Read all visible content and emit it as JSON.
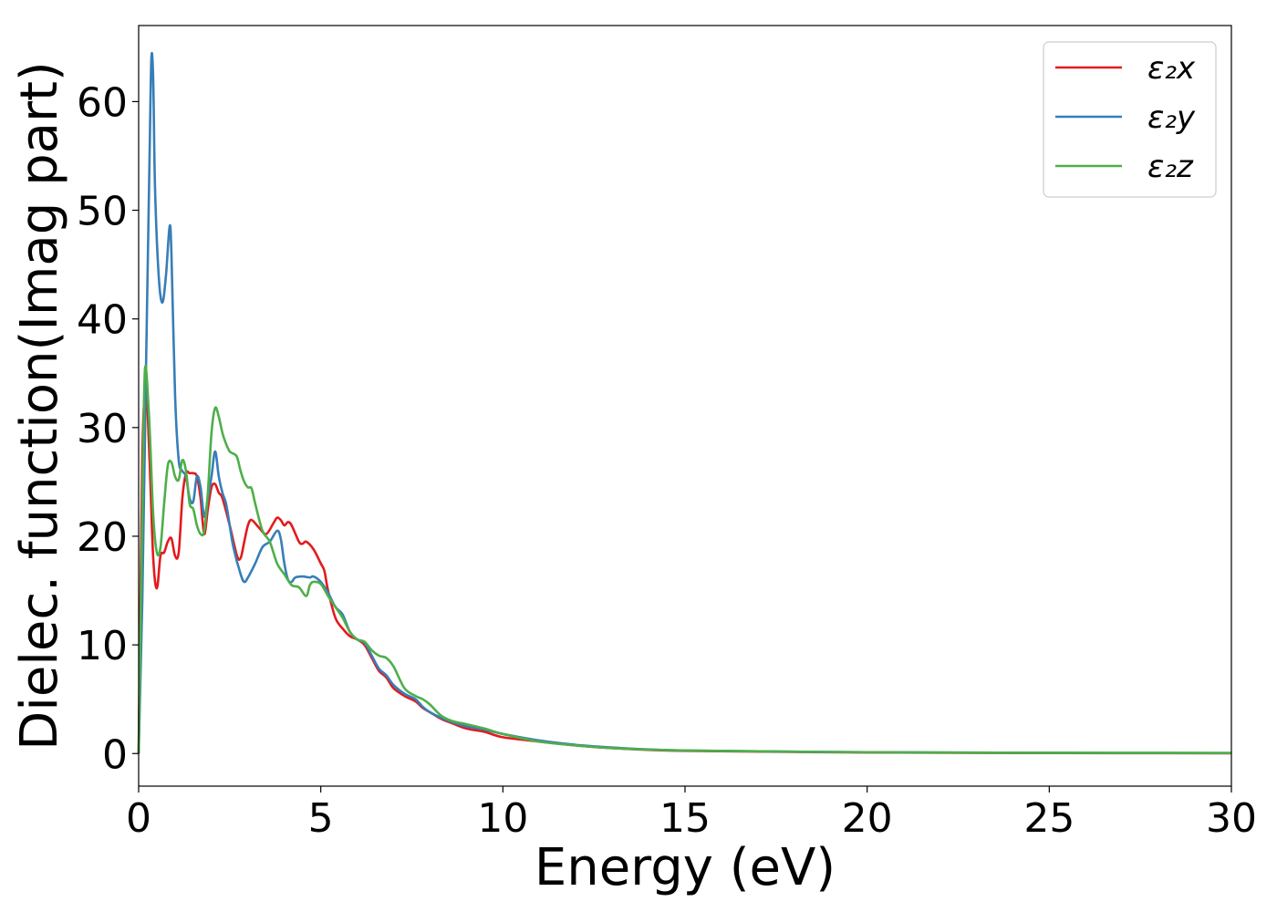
{
  "chart_data": {
    "type": "line",
    "title": "",
    "xlabel": "Energy (eV)",
    "ylabel": "Dielec. function(Imag part)",
    "xlim": [
      0,
      30
    ],
    "ylim": [
      -3,
      67
    ],
    "xticks": [
      0,
      5,
      10,
      15,
      20,
      25,
      30
    ],
    "yticks": [
      0,
      10,
      20,
      30,
      40,
      50,
      60
    ],
    "grid": false,
    "legend_position": "top-right",
    "series": [
      {
        "name": "ε₂x",
        "color": "#e41a1c",
        "points": [
          [
            0,
            0
          ],
          [
            0.1,
            27
          ],
          [
            0.2,
            33.5
          ],
          [
            0.3,
            27
          ],
          [
            0.4,
            18
          ],
          [
            0.5,
            15.2
          ],
          [
            0.6,
            18.2
          ],
          [
            0.7,
            18.5
          ],
          [
            0.8,
            19.5
          ],
          [
            0.9,
            19.8
          ],
          [
            1.0,
            18.2
          ],
          [
            1.1,
            18.5
          ],
          [
            1.2,
            23.5
          ],
          [
            1.3,
            25.8
          ],
          [
            1.4,
            25.8
          ],
          [
            1.5,
            25.8
          ],
          [
            1.6,
            25.5
          ],
          [
            1.7,
            23.5
          ],
          [
            1.8,
            20.2
          ],
          [
            1.9,
            22.5
          ],
          [
            2.0,
            24.5
          ],
          [
            2.1,
            24.8
          ],
          [
            2.2,
            24.0
          ],
          [
            2.3,
            23.5
          ],
          [
            2.5,
            21.0
          ],
          [
            2.7,
            18.2
          ],
          [
            2.8,
            18.0
          ],
          [
            2.9,
            19.5
          ],
          [
            3.0,
            21.0
          ],
          [
            3.1,
            21.5
          ],
          [
            3.3,
            20.8
          ],
          [
            3.5,
            20.2
          ],
          [
            3.7,
            21.2
          ],
          [
            3.8,
            21.7
          ],
          [
            3.9,
            21.5
          ],
          [
            4.0,
            21.0
          ],
          [
            4.1,
            21.3
          ],
          [
            4.2,
            21.0
          ],
          [
            4.4,
            19.5
          ],
          [
            4.5,
            19.3
          ],
          [
            4.6,
            19.5
          ],
          [
            4.8,
            18.8
          ],
          [
            5.0,
            17.5
          ],
          [
            5.1,
            16.8
          ],
          [
            5.2,
            15.0
          ],
          [
            5.4,
            12.5
          ],
          [
            5.6,
            11.5
          ],
          [
            5.8,
            10.8
          ],
          [
            6.0,
            10.5
          ],
          [
            6.2,
            10.0
          ],
          [
            6.4,
            8.8
          ],
          [
            6.6,
            7.6
          ],
          [
            6.8,
            7.0
          ],
          [
            7.0,
            6.0
          ],
          [
            7.3,
            5.3
          ],
          [
            7.6,
            4.8
          ],
          [
            7.8,
            4.2
          ],
          [
            8.0,
            3.8
          ],
          [
            8.3,
            3.2
          ],
          [
            8.6,
            2.8
          ],
          [
            9.0,
            2.3
          ],
          [
            9.5,
            2.0
          ],
          [
            10.0,
            1.5
          ],
          [
            11.0,
            1.1
          ],
          [
            12.0,
            0.75
          ],
          [
            13.0,
            0.5
          ],
          [
            15.0,
            0.25
          ],
          [
            20.0,
            0.1
          ],
          [
            25.0,
            0.05
          ],
          [
            30.0,
            0.03
          ]
        ]
      },
      {
        "name": "ε₂y",
        "color": "#377eb8",
        "points": [
          [
            0,
            0
          ],
          [
            0.1,
            14
          ],
          [
            0.2,
            35
          ],
          [
            0.3,
            55
          ],
          [
            0.35,
            64
          ],
          [
            0.4,
            62
          ],
          [
            0.45,
            52
          ],
          [
            0.55,
            44
          ],
          [
            0.65,
            41.5
          ],
          [
            0.75,
            44
          ],
          [
            0.85,
            48.5
          ],
          [
            0.9,
            46
          ],
          [
            1.0,
            33
          ],
          [
            1.1,
            27
          ],
          [
            1.2,
            26
          ],
          [
            1.3,
            25.5
          ],
          [
            1.4,
            23.5
          ],
          [
            1.5,
            23.2
          ],
          [
            1.6,
            25.5
          ],
          [
            1.7,
            24.5
          ],
          [
            1.8,
            21.8
          ],
          [
            1.9,
            23.5
          ],
          [
            2.0,
            25.5
          ],
          [
            2.1,
            27.8
          ],
          [
            2.2,
            25.5
          ],
          [
            2.3,
            24.0
          ],
          [
            2.4,
            23.0
          ],
          [
            2.5,
            21.0
          ],
          [
            2.6,
            19.0
          ],
          [
            2.8,
            16.5
          ],
          [
            2.9,
            15.8
          ],
          [
            3.0,
            16.2
          ],
          [
            3.2,
            17.5
          ],
          [
            3.4,
            19.0
          ],
          [
            3.6,
            19.5
          ],
          [
            3.8,
            20.5
          ],
          [
            3.9,
            19.8
          ],
          [
            4.0,
            17.5
          ],
          [
            4.1,
            16.0
          ],
          [
            4.2,
            15.8
          ],
          [
            4.3,
            16.2
          ],
          [
            4.5,
            16.3
          ],
          [
            4.7,
            16.2
          ],
          [
            4.8,
            16.3
          ],
          [
            5.0,
            15.8
          ],
          [
            5.2,
            14.8
          ],
          [
            5.4,
            13.5
          ],
          [
            5.6,
            12.8
          ],
          [
            5.8,
            11.2
          ],
          [
            6.0,
            10.5
          ],
          [
            6.2,
            10.2
          ],
          [
            6.4,
            9.0
          ],
          [
            6.6,
            7.8
          ],
          [
            6.8,
            7.2
          ],
          [
            7.0,
            6.3
          ],
          [
            7.3,
            5.5
          ],
          [
            7.6,
            5.0
          ],
          [
            7.8,
            4.3
          ],
          [
            8.0,
            3.8
          ],
          [
            8.3,
            3.3
          ],
          [
            8.6,
            2.9
          ],
          [
            9.0,
            2.5
          ],
          [
            9.5,
            2.2
          ],
          [
            10.0,
            1.8
          ],
          [
            11.0,
            1.2
          ],
          [
            12.0,
            0.8
          ],
          [
            13.0,
            0.55
          ],
          [
            15.0,
            0.28
          ],
          [
            20.0,
            0.12
          ],
          [
            25.0,
            0.07
          ],
          [
            30.0,
            0.05
          ]
        ]
      },
      {
        "name": "ε₂z",
        "color": "#4daf4a",
        "points": [
          [
            0,
            0
          ],
          [
            0.1,
            22
          ],
          [
            0.15,
            33
          ],
          [
            0.2,
            35.5
          ],
          [
            0.3,
            30
          ],
          [
            0.4,
            22
          ],
          [
            0.5,
            18.5
          ],
          [
            0.6,
            19
          ],
          [
            0.7,
            23
          ],
          [
            0.8,
            26.5
          ],
          [
            0.9,
            26.8
          ],
          [
            1.0,
            25.5
          ],
          [
            1.1,
            25.2
          ],
          [
            1.2,
            27.0
          ],
          [
            1.3,
            26.0
          ],
          [
            1.4,
            23.0
          ],
          [
            1.5,
            22.5
          ],
          [
            1.6,
            21.0
          ],
          [
            1.7,
            20.2
          ],
          [
            1.8,
            20.5
          ],
          [
            1.9,
            24.0
          ],
          [
            2.0,
            29.5
          ],
          [
            2.1,
            31.8
          ],
          [
            2.2,
            31.0
          ],
          [
            2.3,
            29.5
          ],
          [
            2.4,
            28.5
          ],
          [
            2.5,
            27.8
          ],
          [
            2.6,
            27.6
          ],
          [
            2.7,
            27.3
          ],
          [
            2.8,
            26.0
          ],
          [
            2.9,
            25.0
          ],
          [
            3.0,
            24.5
          ],
          [
            3.1,
            24.4
          ],
          [
            3.2,
            23.0
          ],
          [
            3.4,
            20.5
          ],
          [
            3.6,
            19.5
          ],
          [
            3.8,
            17.5
          ],
          [
            4.0,
            16.5
          ],
          [
            4.2,
            15.5
          ],
          [
            4.4,
            15.3
          ],
          [
            4.6,
            14.5
          ],
          [
            4.7,
            15.5
          ],
          [
            4.8,
            15.8
          ],
          [
            5.0,
            15.6
          ],
          [
            5.2,
            14.5
          ],
          [
            5.4,
            13.5
          ],
          [
            5.6,
            12.5
          ],
          [
            5.8,
            11.2
          ],
          [
            6.0,
            10.5
          ],
          [
            6.2,
            10.3
          ],
          [
            6.4,
            9.5
          ],
          [
            6.6,
            9.0
          ],
          [
            6.8,
            8.8
          ],
          [
            7.0,
            8.0
          ],
          [
            7.3,
            6.0
          ],
          [
            7.6,
            5.3
          ],
          [
            7.8,
            5.0
          ],
          [
            8.0,
            4.5
          ],
          [
            8.3,
            3.5
          ],
          [
            8.6,
            3.0
          ],
          [
            9.0,
            2.7
          ],
          [
            9.5,
            2.3
          ],
          [
            10.0,
            1.8
          ],
          [
            11.0,
            1.1
          ],
          [
            12.0,
            0.75
          ],
          [
            13.0,
            0.5
          ],
          [
            15.0,
            0.28
          ],
          [
            20.0,
            0.12
          ],
          [
            25.0,
            0.07
          ],
          [
            30.0,
            0.05
          ]
        ]
      }
    ]
  }
}
